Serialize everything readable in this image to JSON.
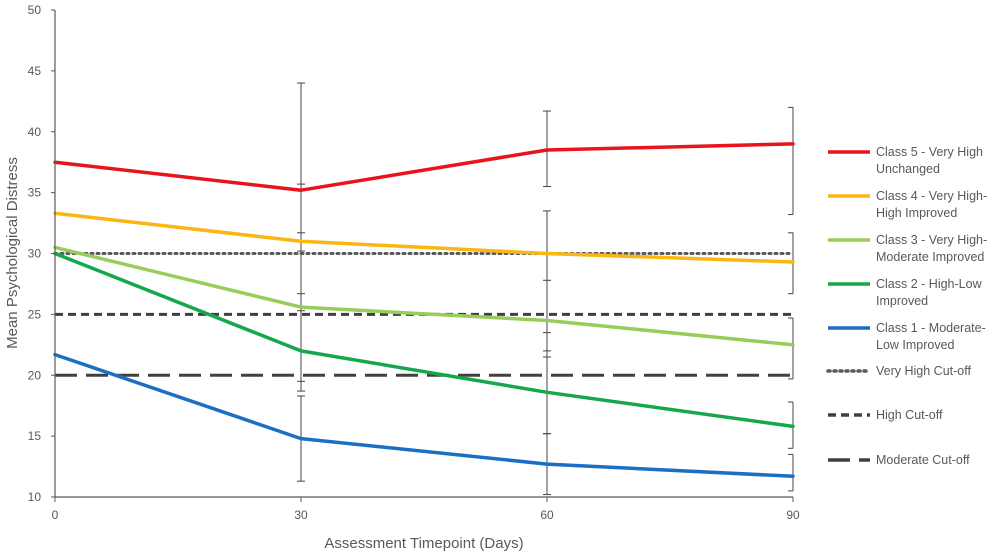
{
  "chart_data": {
    "type": "line",
    "title": "",
    "xlabel": "Assessment Timepoint (Days)",
    "ylabel": "Mean Psychological Distress",
    "x": [
      0,
      30,
      60,
      90
    ],
    "x_tick_labels": [
      "0",
      "30",
      "60",
      "90"
    ],
    "xlim": [
      0,
      90
    ],
    "ylim": [
      10,
      50
    ],
    "y_ticks": [
      10,
      15,
      20,
      25,
      30,
      35,
      40,
      45,
      50
    ],
    "grid": false,
    "legend_position": "right",
    "series": [
      {
        "name": "Class 5 - Very High Unchanged",
        "legend_lines": [
          "Class 5 - Very High",
          "Unchanged"
        ],
        "color": "#e8141b",
        "style": "solid",
        "values": [
          37.5,
          35.2,
          38.5,
          39.0
        ],
        "error_low": [
          null,
          30.2,
          35.5,
          33.2
        ],
        "error_high": [
          null,
          44.0,
          41.7,
          42.0
        ]
      },
      {
        "name": "Class 4 - Very High-High Improved",
        "legend_lines": [
          "Class 4 - Very High-",
          "High Improved"
        ],
        "color": "#fbb612",
        "style": "solid",
        "values": [
          33.3,
          31.0,
          30.0,
          29.3
        ],
        "error_low": [
          null,
          26.7,
          23.5,
          26.7
        ],
        "error_high": [
          null,
          35.7,
          33.5,
          31.7
        ]
      },
      {
        "name": "Class 3 - Very High-Moderate Improved",
        "legend_lines": [
          "Class 3 - Very High-",
          "Moderate Improved"
        ],
        "color": "#99cc5a",
        "style": "solid",
        "values": [
          30.5,
          25.6,
          24.5,
          22.5
        ],
        "error_low": [
          null,
          19.5,
          21.5,
          19.7
        ],
        "error_high": [
          null,
          31.7,
          27.8,
          24.7
        ]
      },
      {
        "name": "Class 2 - High-Low Improved",
        "legend_lines": [
          "Class 2 - High-Low",
          "Improved"
        ],
        "color": "#14a84a",
        "style": "solid",
        "values": [
          30.0,
          22.0,
          18.6,
          15.8
        ],
        "error_low": [
          null,
          18.7,
          15.2,
          14.0
        ],
        "error_high": [
          null,
          25.3,
          22.0,
          17.8
        ]
      },
      {
        "name": "Class 1 - Moderate-Low Improved",
        "legend_lines": [
          "Class 1 - Moderate-",
          "Low Improved"
        ],
        "color": "#1b6fc2",
        "style": "solid",
        "values": [
          21.7,
          14.8,
          12.7,
          11.7
        ],
        "error_low": [
          null,
          11.3,
          10.2,
          10.5
        ],
        "error_high": [
          null,
          18.3,
          15.2,
          13.5
        ]
      }
    ],
    "reference_lines": [
      {
        "name": "Very High Cut-off",
        "value": 30,
        "style": "dotted",
        "color": "#595959"
      },
      {
        "name": "High Cut-off",
        "value": 25,
        "style": "dashed",
        "color": "#404040"
      },
      {
        "name": "Moderate Cut-off",
        "value": 20,
        "style": "long-dashed",
        "color": "#404040"
      }
    ]
  }
}
